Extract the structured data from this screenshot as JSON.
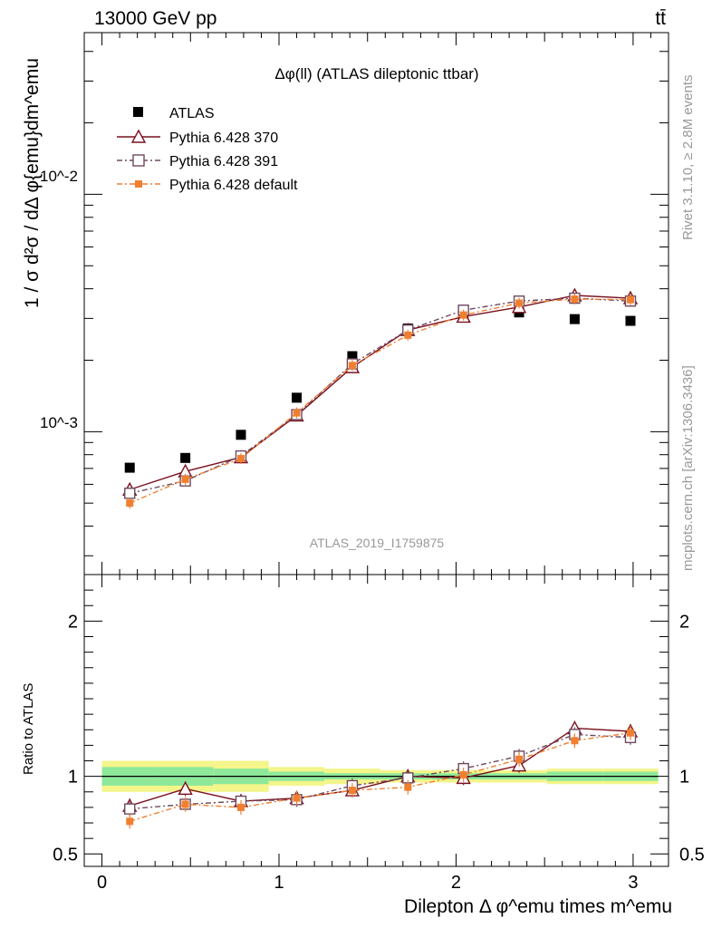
{
  "header": {
    "left": "13000 GeV pp",
    "right": "tt̄"
  },
  "side_labels": {
    "rivet": "Rivet 3.1.10, ≥ 2.8M events",
    "mcplots": "mcplots.cern.ch [arXiv:1306.3436]"
  },
  "colors": {
    "atlas": "#000000",
    "p370": "#7b1020",
    "p391": "#6e4a5e",
    "pdefault": "#f07f30",
    "band_green": "#8ee89a",
    "band_yellow": "#f4f58a"
  },
  "chart_data": [
    {
      "type": "line",
      "title": "Δφ(ll) (ATLAS dileptonic ttbar)",
      "analysis_id": "ATLAS_2019_I1759875",
      "ylabel": "1 / σ  d²σ / dΔ φ{emu}dm^emu",
      "yscale": "log",
      "ylim": [
        0.00025,
        0.048
      ],
      "xlim": [
        -0.1,
        3.2
      ],
      "y_tick_labels": [
        "10^-3",
        "10^-2"
      ],
      "x": [
        0.157,
        0.471,
        0.785,
        1.1,
        1.414,
        1.728,
        2.042,
        2.356,
        2.67,
        2.985
      ],
      "series": [
        {
          "name": "ATLAS",
          "marker": "square-filled",
          "color": "#000000",
          "values": [
            0.000705,
            0.000775,
            0.00097,
            0.00139,
            0.00208,
            0.00272,
            0.00308,
            0.00318,
            0.00298,
            0.00293
          ]
        },
        {
          "name": "Pythia 6.428 370",
          "marker": "triangle-open",
          "color": "#7b1020",
          "values": [
            0.00057,
            0.00068,
            0.00078,
            0.00117,
            0.00187,
            0.00268,
            0.00305,
            0.00335,
            0.00375,
            0.00365
          ]
        },
        {
          "name": "Pythia 6.428 391",
          "marker": "square-open",
          "color": "#6e4a5e",
          "values": [
            0.00055,
            0.00062,
            0.00079,
            0.00118,
            0.00193,
            0.00268,
            0.00325,
            0.00355,
            0.00365,
            0.00355
          ]
        },
        {
          "name": "Pythia 6.428 default",
          "marker": "square-filled-small",
          "color": "#f07f30",
          "values": [
            0.0005,
            0.00063,
            0.00077,
            0.0012,
            0.0019,
            0.00255,
            0.0031,
            0.00348,
            0.00362,
            0.0036
          ]
        }
      ]
    },
    {
      "type": "line",
      "ylabel": "Ratio to ATLAS",
      "ylim": [
        0.42,
        2.3
      ],
      "xlim": [
        -0.1,
        3.2
      ],
      "xlabel": "Dilepton Δ φ^emu times m^emu",
      "x_ticks": [
        0,
        1,
        2,
        3
      ],
      "x_tick_labels": [
        "0",
        "1",
        "2",
        "3"
      ],
      "y_ticks": [
        0.5,
        1,
        2
      ],
      "y_tick_labels": [
        "0.5",
        "1",
        "2"
      ],
      "x": [
        0.157,
        0.471,
        0.785,
        1.1,
        1.414,
        1.728,
        2.042,
        2.356,
        2.67,
        2.985
      ],
      "reference_line": 1,
      "series": [
        {
          "name": "Pythia 6.428 370",
          "color": "#7b1020",
          "values": [
            0.81,
            0.92,
            0.84,
            0.86,
            0.91,
            1.0,
            0.99,
            1.07,
            1.31,
            1.29
          ]
        },
        {
          "name": "Pythia 6.428 391",
          "color": "#6e4a5e",
          "values": [
            0.79,
            0.82,
            0.84,
            0.85,
            0.94,
            0.99,
            1.05,
            1.13,
            1.27,
            1.25
          ]
        },
        {
          "name": "Pythia 6.428 default",
          "color": "#f07f30",
          "values": [
            0.71,
            0.82,
            0.8,
            0.86,
            0.91,
            0.93,
            1.01,
            1.11,
            1.23,
            1.28
          ]
        }
      ],
      "band_yellow_halfwidth": [
        0.1,
        0.1,
        0.1,
        0.06,
        0.05,
        0.04,
        0.04,
        0.04,
        0.05,
        0.05
      ],
      "band_green_halfwidth": [
        0.06,
        0.06,
        0.05,
        0.03,
        0.02,
        0.02,
        0.02,
        0.02,
        0.03,
        0.03
      ]
    }
  ]
}
